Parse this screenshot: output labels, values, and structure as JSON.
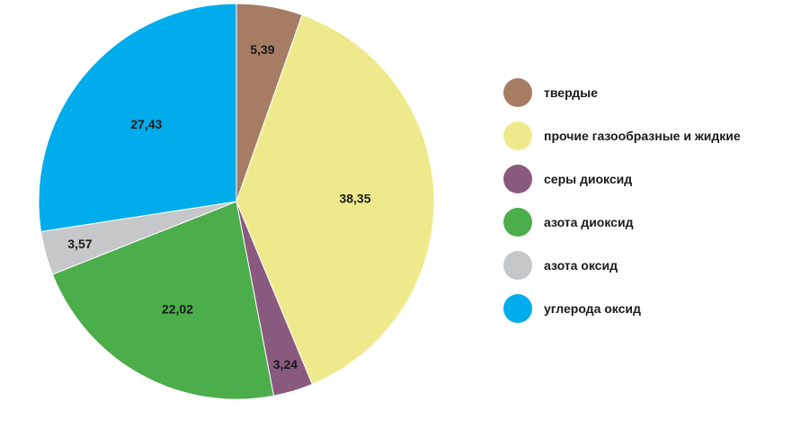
{
  "chart_data": {
    "type": "pie",
    "start_angle_deg": 0,
    "direction": "clockwise",
    "legend_position": "right",
    "slices": [
      {
        "label": "твердые",
        "value": 5.39,
        "value_label": "5,39",
        "color": "#a67c65"
      },
      {
        "label": "прочие газообразные и жидкие",
        "value": 38.35,
        "value_label": "38,35",
        "color": "#eeea8c"
      },
      {
        "label": "серы диоксид",
        "value": 3.24,
        "value_label": "3,24",
        "color": "#8a5a7e"
      },
      {
        "label": "азота диоксид",
        "value": 22.02,
        "value_label": "22,02",
        "color": "#4cad4b"
      },
      {
        "label": "азота оксид",
        "value": 3.57,
        "value_label": "3,57",
        "color": "#c6c7c9"
      },
      {
        "label": "углерода оксид",
        "value": 27.43,
        "value_label": "27,43",
        "color": "#00acec"
      }
    ]
  }
}
